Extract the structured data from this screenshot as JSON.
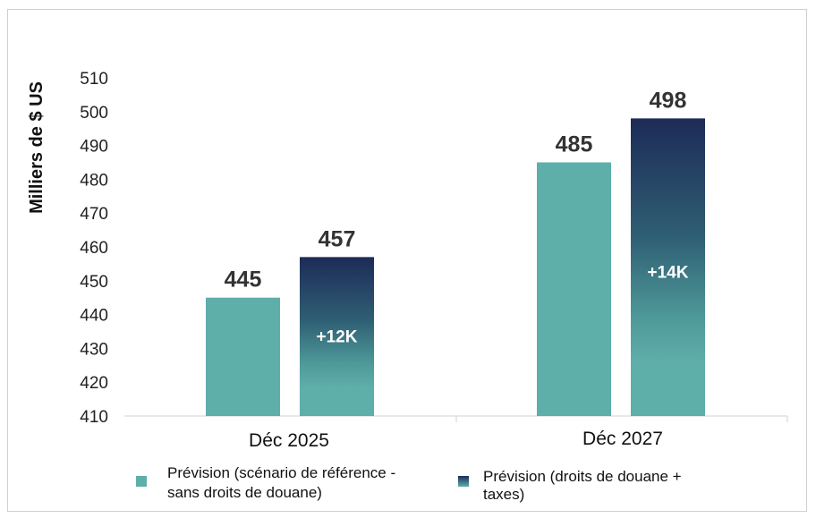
{
  "chart_data": {
    "type": "bar",
    "ylabel": "Milliers de $ US",
    "ylim": [
      410,
      510
    ],
    "yticks": [
      "410",
      "420",
      "430",
      "440",
      "450",
      "460",
      "470",
      "480",
      "490",
      "500",
      "510"
    ],
    "categories": [
      "Déc 2025",
      "Déc 2027"
    ],
    "series": [
      {
        "name": "Prévision (scénario de référence - sans droits de douane)",
        "legend_lines": [
          "Prévision (scénario de référence -",
          "sans droits de douane)"
        ],
        "values": [
          445,
          485
        ],
        "labels": [
          "445",
          "485"
        ],
        "color": "#5eaeaa"
      },
      {
        "name": "Prévision (droits de douane + taxes)",
        "legend_lines": [
          "Prévision (droits de douane +",
          "taxes)"
        ],
        "values": [
          457,
          498
        ],
        "labels": [
          "457",
          "498"
        ],
        "inner_labels": [
          "+12K",
          "+14K"
        ],
        "color_top": "#1d2b57",
        "color_bottom": "#5eaeaa"
      }
    ],
    "grid": false,
    "legend_position": "bottom"
  }
}
